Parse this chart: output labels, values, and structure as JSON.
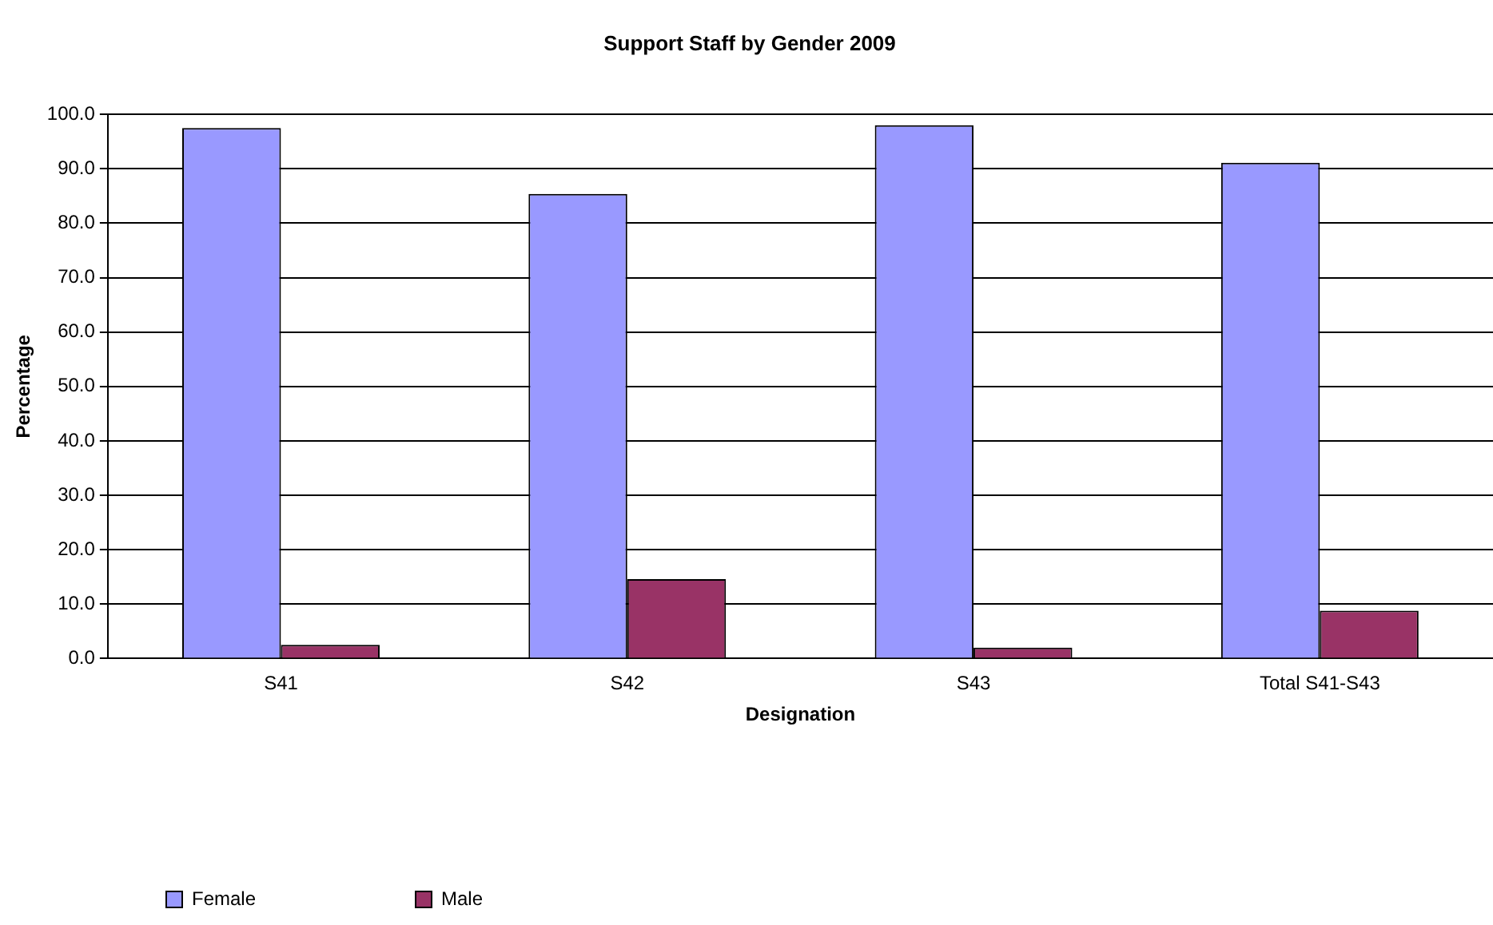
{
  "chart_data": {
    "type": "bar",
    "title": "Support Staff by Gender 2009",
    "xlabel": "Designation",
    "ylabel": "Percentage",
    "categories": [
      "S41",
      "S42",
      "S43",
      "Total S41-S43"
    ],
    "series": [
      {
        "name": "Female",
        "color": "#9999ff",
        "values": [
          97.5,
          85.4,
          98.0,
          91.1
        ]
      },
      {
        "name": "Male",
        "color": "#993366",
        "values": [
          2.5,
          14.6,
          2.0,
          8.8
        ]
      }
    ],
    "ylim": [
      0,
      100
    ],
    "yticks": [
      {
        "value": 0,
        "label": "0.0"
      },
      {
        "value": 10,
        "label": "10.0"
      },
      {
        "value": 20,
        "label": "20.0"
      },
      {
        "value": 30,
        "label": "30.0"
      },
      {
        "value": 40,
        "label": "40.0"
      },
      {
        "value": 50,
        "label": "50.0"
      },
      {
        "value": 60,
        "label": "60.0"
      },
      {
        "value": 70,
        "label": "70.0"
      },
      {
        "value": 80,
        "label": "80.0"
      },
      {
        "value": 90,
        "label": "90.0"
      },
      {
        "value": 100,
        "label": "100.0"
      }
    ],
    "grid": "y",
    "legend": "bottom"
  }
}
